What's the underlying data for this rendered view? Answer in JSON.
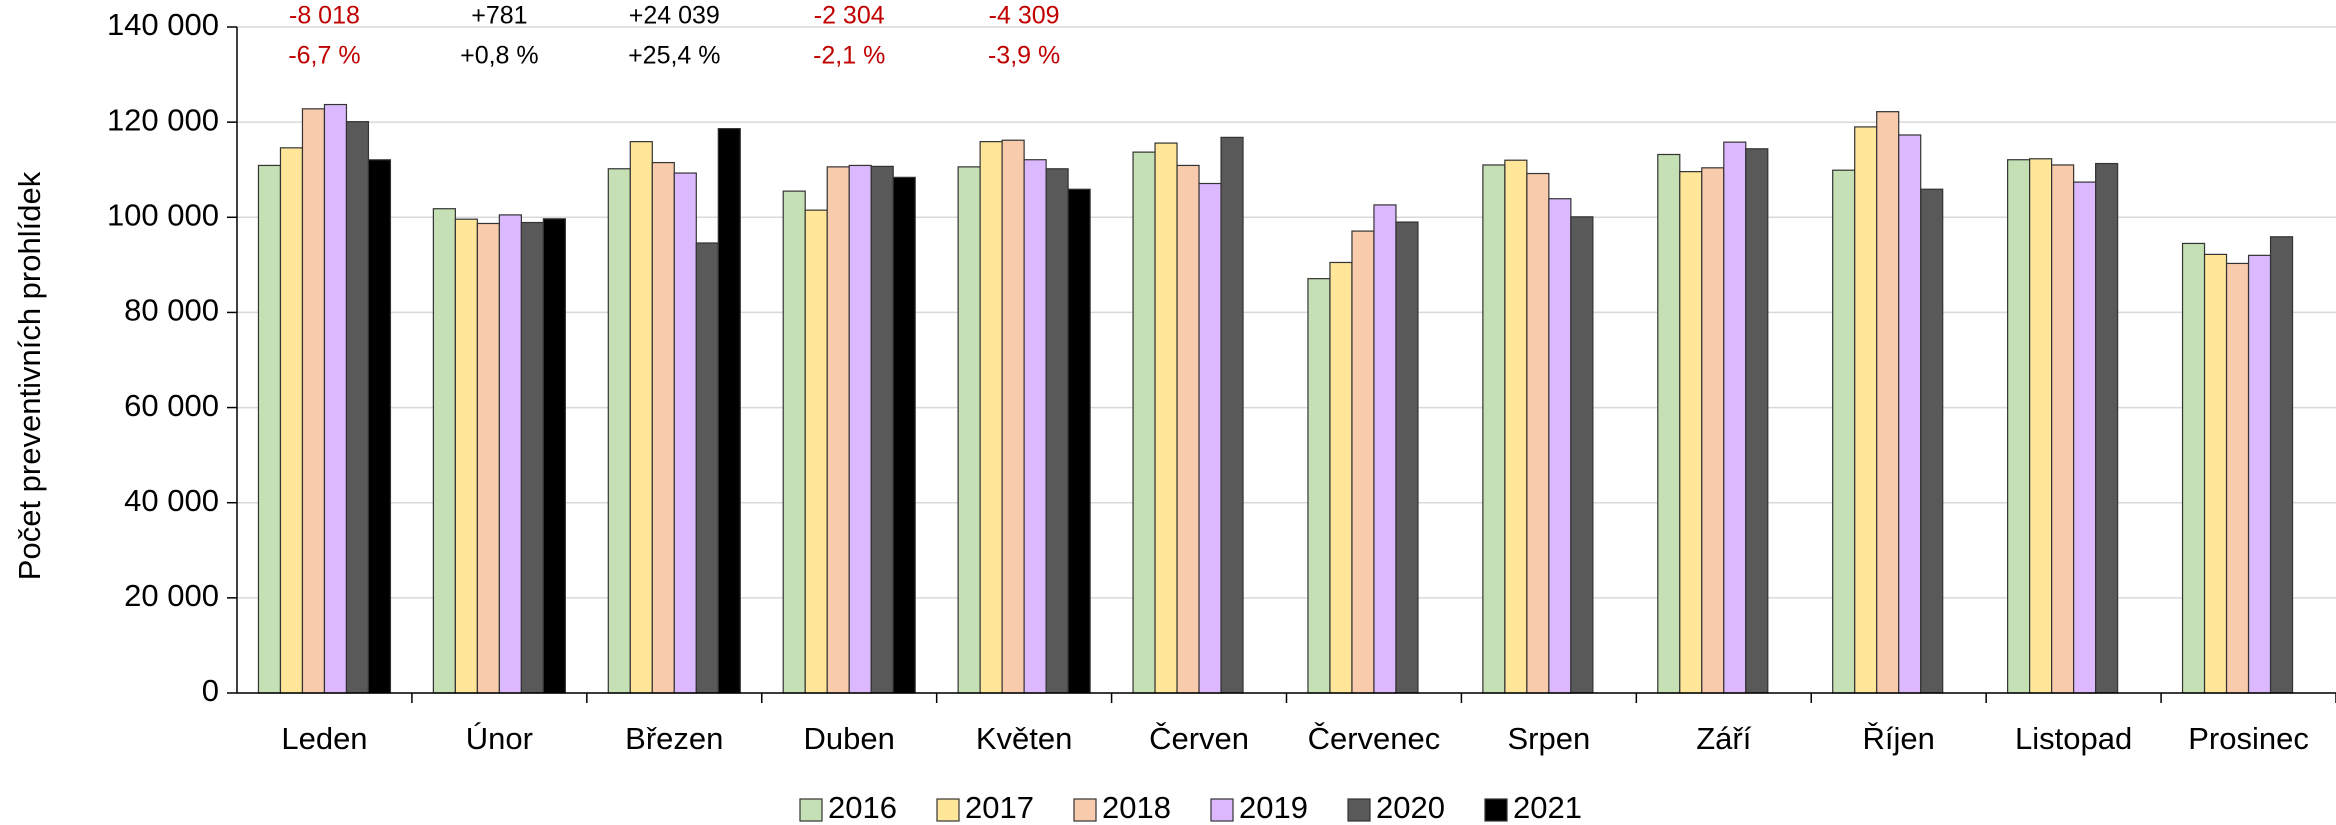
{
  "chart_data": {
    "type": "bar",
    "y_label": "Počet preventivních prohlídek",
    "categories": [
      "Leden",
      "Únor",
      "Březen",
      "Duben",
      "Květen",
      "Červen",
      "Červenec",
      "Srpen",
      "Září",
      "Říjen",
      "Listopad",
      "Prosinec"
    ],
    "series": [
      {
        "name": "2016",
        "color": "#c5e0b4",
        "values": [
          110900,
          101800,
          110200,
          105500,
          110600,
          113700,
          87100,
          111000,
          113200,
          109900,
          112100,
          94500
        ]
      },
      {
        "name": "2017",
        "color": "#ffe699",
        "values": [
          114600,
          99600,
          115900,
          101500,
          115900,
          115600,
          90500,
          112000,
          109600,
          119000,
          112300,
          92200
        ]
      },
      {
        "name": "2018",
        "color": "#f8cbad",
        "values": [
          122800,
          98700,
          111500,
          110600,
          116200,
          110900,
          97100,
          109200,
          110400,
          122200,
          111000,
          90300
        ]
      },
      {
        "name": "2019",
        "color": "#dcb9ff",
        "values": [
          123700,
          100500,
          109300,
          110900,
          112100,
          107100,
          102600,
          103900,
          115800,
          117300,
          107400,
          92000
        ]
      },
      {
        "name": "2020",
        "color": "#595959",
        "values": [
          120100,
          98900,
          94600,
          110700,
          110200,
          116800,
          99000,
          100100,
          114400,
          105900,
          111300,
          95900
        ]
      },
      {
        "name": "2021",
        "color": "#000000",
        "values": [
          112082,
          99681,
          118639,
          108396,
          105891,
          null,
          null,
          null,
          null,
          null,
          null,
          null
        ]
      }
    ],
    "annotations": [
      {
        "category": "Leden",
        "change": "-8 018",
        "percent": "-6,7 %",
        "color": "#c00000"
      },
      {
        "category": "Únor",
        "change": "+781",
        "percent": "+0,8 %",
        "color": "#000000"
      },
      {
        "category": "Březen",
        "change": "+24 039",
        "percent": "+25,4 %",
        "color": "#000000"
      },
      {
        "category": "Duben",
        "change": "-2 304",
        "percent": "-2,1 %",
        "color": "#c00000"
      },
      {
        "category": "Květen",
        "change": "-4 309",
        "percent": "-3,9 %",
        "color": "#c00000"
      }
    ],
    "ylim": [
      0,
      140000
    ],
    "yticks": [
      0,
      {
        "value": 20000,
        "label": "20 000"
      },
      {
        "value": 40000,
        "label": "40 000"
      },
      {
        "value": 60000,
        "label": "60 000"
      },
      {
        "value": 80000,
        "label": "80 000"
      },
      {
        "value": 100000,
        "label": "100 000"
      },
      {
        "value": 120000,
        "label": "120 000"
      },
      {
        "value": 140000,
        "label": "140 000"
      }
    ],
    "grid": true,
    "legend": "bottom"
  }
}
